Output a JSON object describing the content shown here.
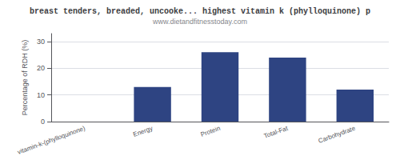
{
  "chart_data": {
    "type": "bar",
    "title": "breast tenders, breaded, uncooke... highest vitamin k (phylloquinone) p",
    "subtitle": "www.dietandfitnesstoday.com",
    "categories": [
      "vitamin-k-(phylloquinone)",
      "Energy",
      "Protein",
      "Total-Fat",
      "Carbohydrate"
    ],
    "values": [
      0,
      13,
      26,
      24,
      12
    ],
    "color": "#2e4482",
    "ylabel": "Percentage of RDH (%)",
    "ylim": [
      0,
      33
    ],
    "yticks": [
      0,
      10,
      20,
      30
    ],
    "grid": true
  }
}
